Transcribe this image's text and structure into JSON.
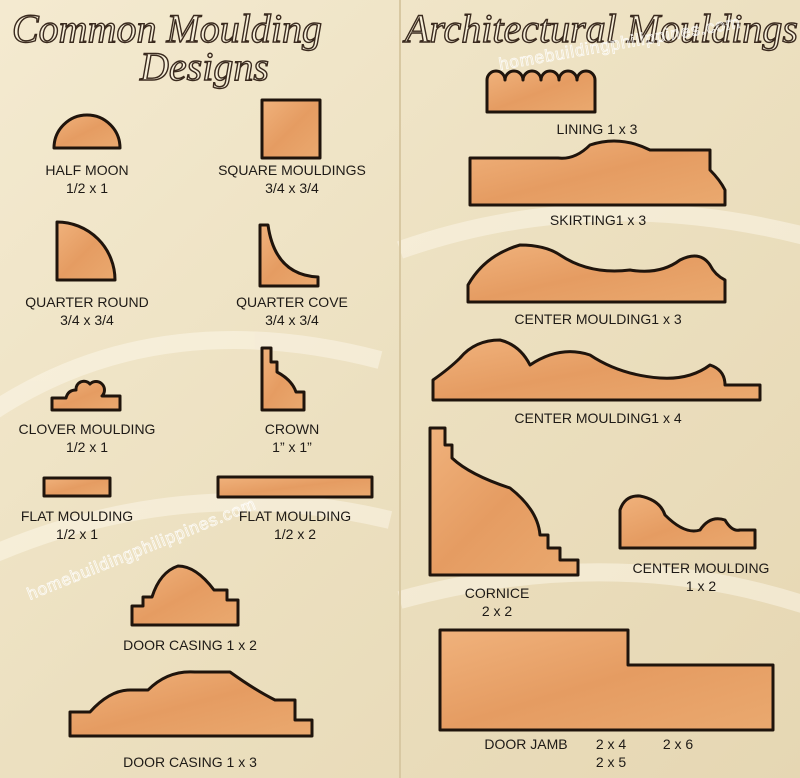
{
  "left_panel": {
    "title_lines": [
      "Common Moulding",
      "Designs"
    ],
    "items": [
      {
        "name": "HALF MOON",
        "size": "1/2 x 1"
      },
      {
        "name": "SQUARE MOULDINGS",
        "size": "3/4 x 3/4"
      },
      {
        "name": "QUARTER ROUND",
        "size": "3/4 x 3/4"
      },
      {
        "name": "QUARTER COVE",
        "size": "3/4 x 3/4"
      },
      {
        "name": "CLOVER MOULDING",
        "size": "1/2 x 1"
      },
      {
        "name": "CROWN",
        "size": "1” x 1”"
      },
      {
        "name": "FLAT MOULDING",
        "size": "1/2 x 1"
      },
      {
        "name": "FLAT MOULDING",
        "size": "1/2 x 2"
      },
      {
        "name": "DOOR CASING 1 x 2"
      },
      {
        "name": "DOOR CASING 1 x 3"
      }
    ]
  },
  "right_panel": {
    "title": "Architectural Mouldings",
    "items": [
      {
        "name": "LINING 1 x 3"
      },
      {
        "name": "SKIRTING1 x 3"
      },
      {
        "name": "CENTER MOULDING1 x 3"
      },
      {
        "name": "CENTER MOULDING1 x 4"
      },
      {
        "name": "CORNICE",
        "size": "2 x 2"
      },
      {
        "name": "CENTER MOULDING",
        "size": "1 x 2"
      },
      {
        "name": "DOOR JAMB",
        "sizes": [
          "2 x 4",
          "2 x 6",
          "2 x 5"
        ]
      }
    ]
  },
  "watermarks": [
    "homebuildingphilippines.com",
    "homebuildingphilippines.com"
  ]
}
